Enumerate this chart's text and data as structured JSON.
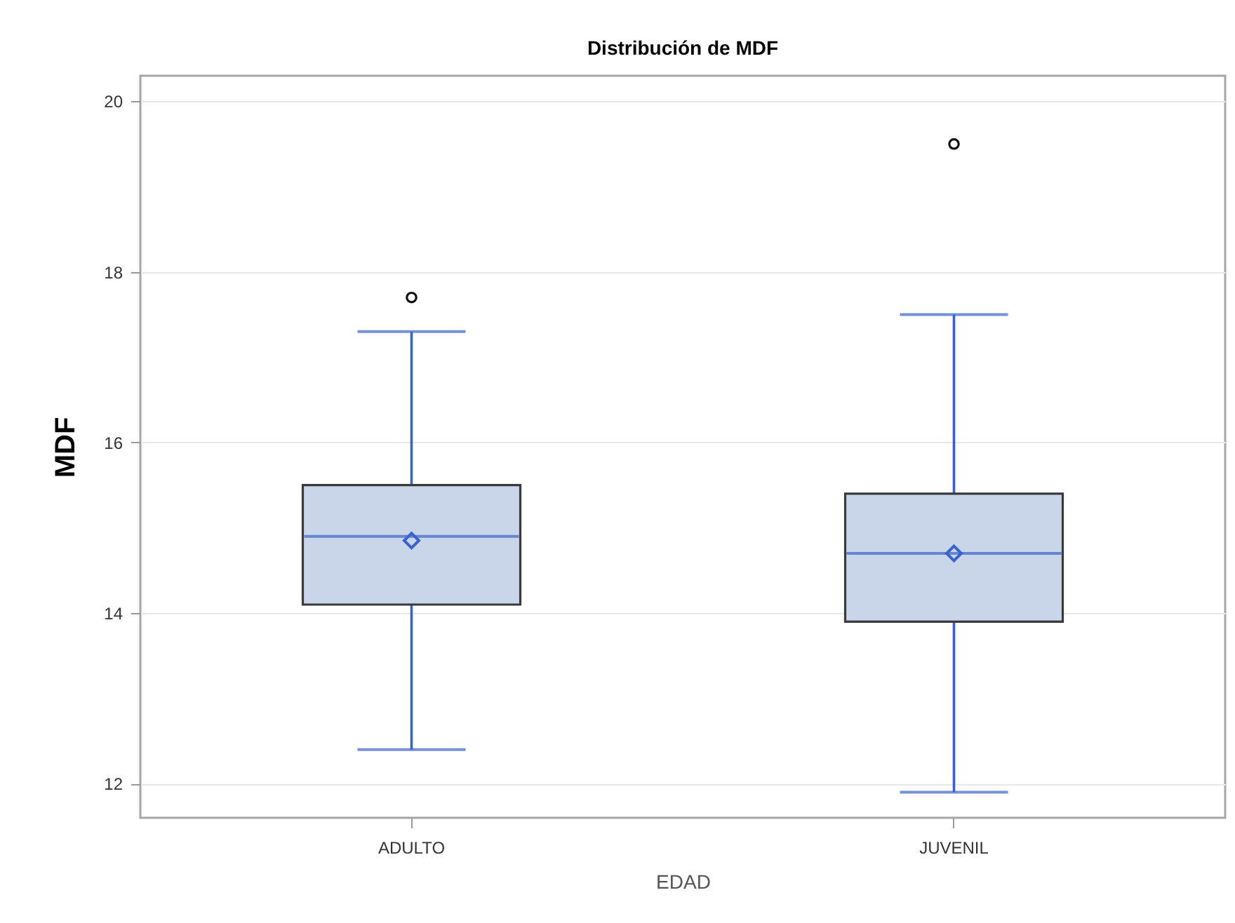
{
  "chart_data": {
    "type": "box",
    "title": "Distribución de MDF",
    "xlabel": "EDAD",
    "ylabel": "MDF",
    "categories": [
      "ADULTO",
      "JUVENIL"
    ],
    "series": [
      {
        "color": "#c9d5e8",
        "boxes": [
          {
            "low": 12.4,
            "q1": 14.1,
            "median": 14.9,
            "q3": 15.5,
            "high": 17.3,
            "mean": 14.85,
            "outliers": [
              17.7
            ]
          },
          {
            "low": 11.9,
            "q1": 13.9,
            "median": 14.7,
            "q3": 15.4,
            "high": 17.5,
            "mean": 14.7,
            "outliers": [
              19.5
            ]
          }
        ]
      }
    ],
    "ylim": [
      11.6,
      20.3
    ],
    "yticks": [
      12,
      14,
      16,
      18,
      20
    ],
    "grid": "y"
  }
}
